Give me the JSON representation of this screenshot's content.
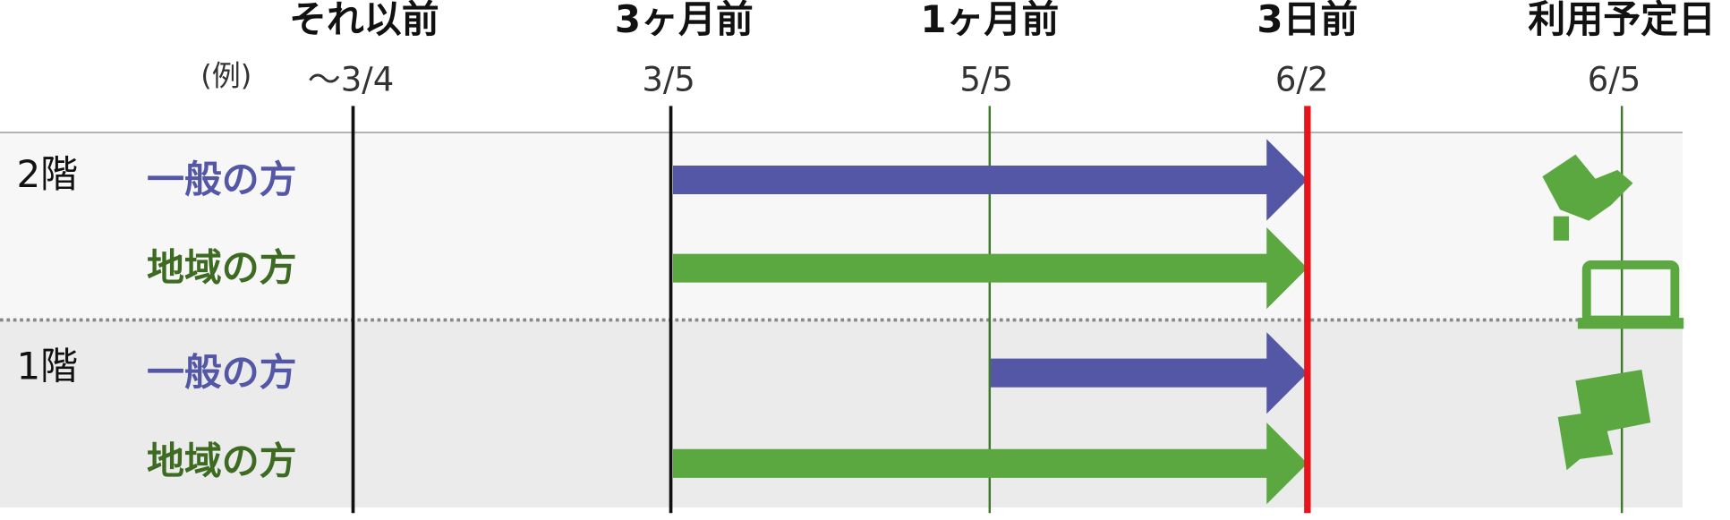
{
  "example_label": "(例)",
  "columns": [
    {
      "label": "それ以前",
      "date": "〜3/4"
    },
    {
      "label": "3ヶ月前",
      "date": "3/5"
    },
    {
      "label": "1ヶ月前",
      "date": "5/5"
    },
    {
      "label": "3日前",
      "date": "6/2"
    },
    {
      "label": "利用予定日",
      "date": "6/5"
    }
  ],
  "floors": [
    {
      "label": "2階",
      "rows": [
        "一般の方",
        "地域の方"
      ]
    },
    {
      "label": "1階",
      "rows": [
        "一般の方",
        "地域の方"
      ]
    }
  ]
}
